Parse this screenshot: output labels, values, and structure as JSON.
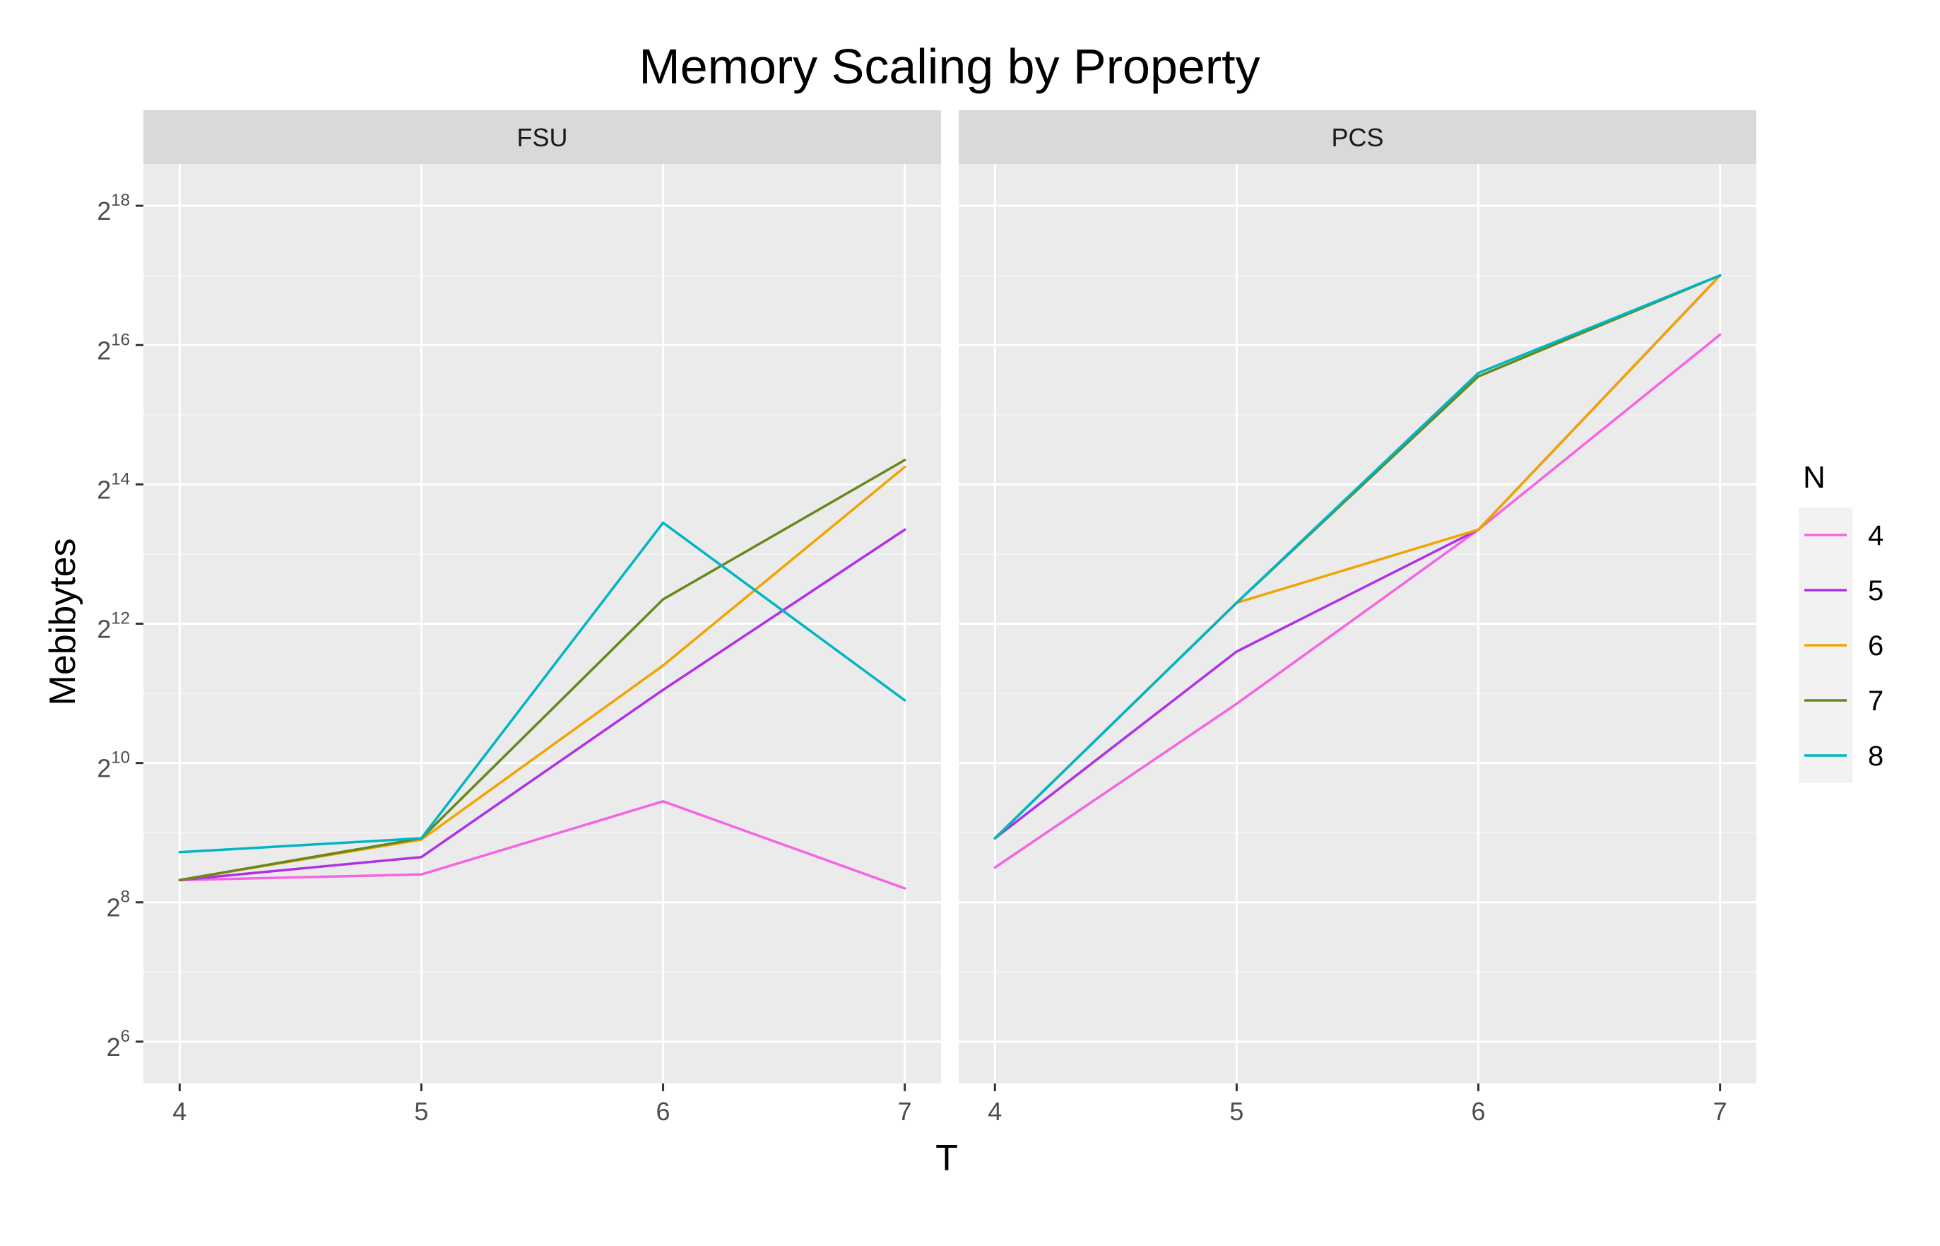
{
  "chart_data": {
    "type": "line",
    "title": "Memory Scaling by Property",
    "xlabel": "T",
    "ylabel": "Mebibytes",
    "y_scale": "log2",
    "x_ticks": [
      4,
      5,
      6,
      7
    ],
    "y_ticks": [
      {
        "base": "2",
        "exp": "6"
      },
      {
        "base": "2",
        "exp": "8"
      },
      {
        "base": "2",
        "exp": "10"
      },
      {
        "base": "2",
        "exp": "12"
      },
      {
        "base": "2",
        "exp": "14"
      },
      {
        "base": "2",
        "exp": "16"
      },
      {
        "base": "2",
        "exp": "18"
      }
    ],
    "y_exponent_range": [
      5.4,
      18.6
    ],
    "x_range": [
      3.85,
      7.15
    ],
    "legend": {
      "title": "N",
      "position": "right"
    },
    "colors": {
      "4": "#f564e3",
      "5": "#b030e8",
      "6": "#f0a400",
      "7": "#66881c",
      "8": "#00b5c4"
    },
    "facets": [
      {
        "name": "FSU",
        "series": [
          {
            "name": "4",
            "x": [
              4,
              5,
              6,
              7
            ],
            "log2_values": [
              8.32,
              8.4,
              9.45,
              8.2
            ]
          },
          {
            "name": "5",
            "x": [
              4,
              5,
              6,
              7
            ],
            "log2_values": [
              8.32,
              8.65,
              11.05,
              13.35
            ]
          },
          {
            "name": "6",
            "x": [
              4,
              5,
              6,
              7
            ],
            "log2_values": [
              8.32,
              8.9,
              11.4,
              14.25
            ]
          },
          {
            "name": "7",
            "x": [
              4,
              5,
              6,
              7
            ],
            "log2_values": [
              8.32,
              8.92,
              12.35,
              14.35
            ]
          },
          {
            "name": "8",
            "x": [
              4,
              5,
              6,
              7
            ],
            "log2_values": [
              8.72,
              8.92,
              13.45,
              10.9
            ]
          }
        ]
      },
      {
        "name": "PCS",
        "series": [
          {
            "name": "4",
            "x": [
              4,
              5,
              6,
              7
            ],
            "log2_values": [
              8.5,
              10.85,
              13.35,
              16.15
            ]
          },
          {
            "name": "5",
            "x": [
              4,
              5,
              6,
              7
            ],
            "log2_values": [
              8.92,
              11.6,
              13.35,
              17
            ]
          },
          {
            "name": "6",
            "x": [
              4,
              5,
              6,
              7
            ],
            "log2_values": [
              8.92,
              12.3,
              13.35,
              17
            ]
          },
          {
            "name": "7",
            "x": [
              4,
              5,
              6,
              7
            ],
            "log2_values": [
              8.92,
              12.3,
              15.55,
              17
            ]
          },
          {
            "name": "8",
            "x": [
              4,
              5,
              6,
              7
            ],
            "log2_values": [
              8.92,
              12.3,
              15.6,
              17
            ]
          }
        ]
      }
    ]
  }
}
